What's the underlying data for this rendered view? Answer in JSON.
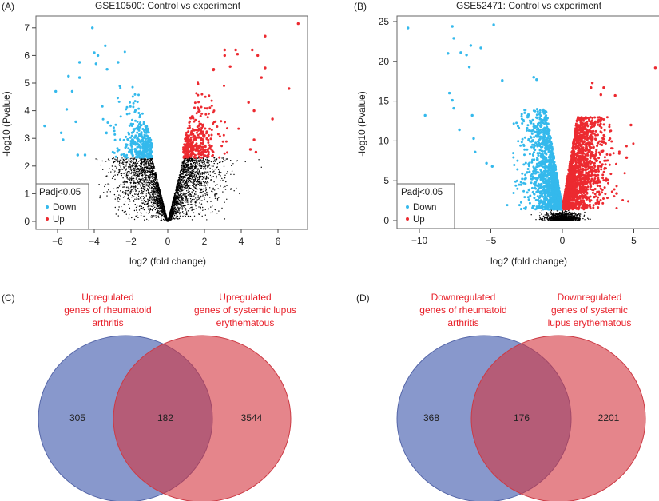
{
  "chart_data": [
    {
      "type": "scatter",
      "panel_label": "(A)",
      "title": "GSE10500: Control vs experiment",
      "xlabel": "log2 (fold change)",
      "ylabel": "-log10 (Pvalue)",
      "xlim": [
        -7.2,
        7.6
      ],
      "ylim": [
        -0.3,
        7.4
      ],
      "xticks": [
        "-6",
        "-4",
        "-2",
        "0",
        "2",
        "4",
        "6"
      ],
      "yticks": [
        "0",
        "1",
        "2",
        "3",
        "4",
        "5",
        "6",
        "7"
      ],
      "grid": false,
      "legend": {
        "title": "Padj<0.05",
        "placement": "bottom-left",
        "entries": [
          "Down",
          "Up"
        ]
      },
      "colors": {
        "Down": "#34b9ec",
        "Up": "#ec2a30",
        "ns": "#000000"
      },
      "significance_threshold_y": 2.3,
      "series": [
        {
          "name": "Down",
          "points": [
            [
              -4.1,
              7.0
            ],
            [
              -3.4,
              6.35
            ],
            [
              -4.0,
              6.1
            ],
            [
              -3.8,
              6.0
            ],
            [
              -4.8,
              5.75
            ],
            [
              -2.7,
              5.75
            ],
            [
              -3.9,
              5.7
            ],
            [
              -3.3,
              5.5
            ],
            [
              -5.4,
              5.25
            ],
            [
              -4.8,
              5.2
            ],
            [
              -6.1,
              4.7
            ],
            [
              -5.2,
              4.7
            ],
            [
              -5.5,
              4.05
            ],
            [
              -5.0,
              3.6
            ],
            [
              -6.7,
              3.45
            ],
            [
              -5.8,
              3.2
            ],
            [
              -5.7,
              2.95
            ],
            [
              -4.9,
              2.4
            ],
            [
              -4.5,
              2.4
            ]
          ]
        },
        {
          "name": "Up",
          "points": [
            [
              7.1,
              7.15
            ],
            [
              5.3,
              6.7
            ],
            [
              3.1,
              6.2
            ],
            [
              3.7,
              6.2
            ],
            [
              4.6,
              6.2
            ],
            [
              4.9,
              6.0
            ],
            [
              3.8,
              6.05
            ],
            [
              3.1,
              6.0
            ],
            [
              3.4,
              5.6
            ],
            [
              5.3,
              5.55
            ],
            [
              2.5,
              5.5
            ],
            [
              5.1,
              5.2
            ],
            [
              6.6,
              4.8
            ],
            [
              4.4,
              4.3
            ],
            [
              4.7,
              4.0
            ],
            [
              5.7,
              3.7
            ],
            [
              4.7,
              2.95
            ],
            [
              4.8,
              2.5
            ],
            [
              4.5,
              2.6
            ]
          ]
        }
      ]
    },
    {
      "type": "scatter",
      "panel_label": "(B)",
      "title": "GSE52471: Control vs experiment",
      "xlabel": "log2 (fold change)",
      "ylabel": "-log10 (Pvalue)",
      "xlim": [
        -11.5,
        7
      ],
      "ylim": [
        -1,
        26.2
      ],
      "xticks": [
        "-10",
        "-5",
        "0",
        "5"
      ],
      "yticks": [
        "0",
        "5",
        "10",
        "15",
        "20",
        "25"
      ],
      "grid": false,
      "legend": {
        "title": "Padj<0.05",
        "placement": "bottom-left",
        "entries": [
          "Down",
          "Up"
        ]
      },
      "colors": {
        "Down": "#34b9ec",
        "Up": "#ec2a30",
        "ns": "#000000"
      },
      "series": [
        {
          "name": "Down",
          "points": [
            [
              -10.8,
              24.2
            ],
            [
              -7.7,
              24.4
            ],
            [
              -4.8,
              24.6
            ],
            [
              -7.6,
              22.9
            ],
            [
              -6.4,
              22.0
            ],
            [
              -5.7,
              21.7
            ],
            [
              -8.0,
              21.0
            ],
            [
              -7.1,
              21.1
            ],
            [
              -6.7,
              20.8
            ],
            [
              -6.5,
              19.3
            ],
            [
              -2.0,
              18.0
            ],
            [
              -1.8,
              17.7
            ],
            [
              -4.2,
              17.6
            ],
            [
              -9.6,
              13.2
            ],
            [
              -7.9,
              16.0
            ],
            [
              -7.7,
              15.1
            ],
            [
              -7.6,
              14.1
            ],
            [
              -6.3,
              13.2
            ],
            [
              -7.2,
              11.4
            ],
            [
              -6.2,
              10.3
            ],
            [
              -6.1,
              8.6
            ],
            [
              -5.3,
              7.2
            ],
            [
              -4.9,
              6.8
            ]
          ]
        },
        {
          "name": "Up",
          "points": [
            [
              6.5,
              19.2
            ],
            [
              2.1,
              17.3
            ],
            [
              2.0,
              16.7
            ],
            [
              2.9,
              16.7
            ],
            [
              2.7,
              15.8
            ],
            [
              3.7,
              15.7
            ],
            [
              4.8,
              12.0
            ],
            [
              4.5,
              7.9
            ],
            [
              3.8,
              3.4
            ]
          ]
        }
      ]
    },
    {
      "type": "venn",
      "panel_label": "(C)",
      "sets": [
        {
          "label": "Upregulated genes of rheumatoid arthritis",
          "label_lines": [
            "Upregulated",
            "genes of rheumatoid",
            "arthritis"
          ],
          "only": "305",
          "color": "#6f80c4"
        },
        {
          "label": "Upregulated genes of systemic lupus erythematous",
          "label_lines": [
            "Upregulated",
            "genes of systemic lupus",
            "erythematous"
          ],
          "only": "3544",
          "color": "#e36e6e"
        }
      ],
      "intersection": "182"
    },
    {
      "type": "venn",
      "panel_label": "(D)",
      "sets": [
        {
          "label": "Downregulated genes of rheumatoid arthritis",
          "label_lines": [
            "Downregulated",
            "genes of rheumatoid",
            "arthritis"
          ],
          "only": "368",
          "color": "#6f80c4"
        },
        {
          "label": "Downregulated genes of systemic lupus erythematous",
          "label_lines": [
            "Downregulated",
            "genes of systemic",
            "lupus erythematous"
          ],
          "only": "2201",
          "color": "#e36e6e"
        }
      ],
      "intersection": "176"
    }
  ]
}
